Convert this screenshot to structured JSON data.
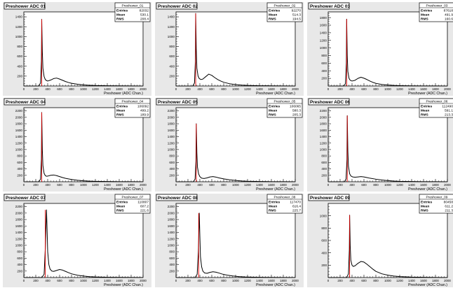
{
  "colors": {
    "histogram_line": "#000000",
    "cut_line": "#e00000",
    "canvas_bg": "#e8e8e8",
    "frame_bg": "#ffffff",
    "axis": "#000000"
  },
  "common": {
    "xlabel": "Preshower (ADC Chan.)",
    "x_ticks": [
      "0",
      "200",
      "400",
      "600",
      "800",
      "1000",
      "1200",
      "1400",
      "1600",
      "1800",
      "2000"
    ],
    "stats_labels": {
      "entries": "Entries",
      "mean": "Mean",
      "rms": "RMS"
    }
  },
  "chart_data": [
    {
      "type": "line",
      "title": "Preshower ADC 01",
      "stats": {
        "name": "Preshower_01",
        "entries": "82032",
        "mean": "530.1",
        "rms": "208.4"
      },
      "xlim": [
        0,
        2000
      ],
      "ylim": [
        0,
        1500
      ],
      "y_ticks": [
        200,
        400,
        600,
        800,
        1000,
        1200,
        1400
      ],
      "cut_x": 300,
      "peak": {
        "x": 300,
        "y": 1350
      },
      "x": [
        0,
        250,
        280,
        295,
        300,
        310,
        320,
        340,
        360,
        380,
        400,
        450,
        500,
        550,
        600,
        650,
        700,
        750,
        800,
        900,
        1000,
        1100,
        1200,
        1400,
        1600,
        1800,
        2000
      ],
      "y": [
        0,
        0,
        60,
        500,
        1350,
        700,
        360,
        190,
        130,
        110,
        100,
        120,
        150,
        160,
        140,
        115,
        90,
        70,
        55,
        35,
        22,
        15,
        10,
        6,
        4,
        2,
        0
      ]
    },
    {
      "type": "line",
      "title": "Preshower ADC 02",
      "stats": {
        "name": "Preshower_02",
        "entries": "92270",
        "mean": "514.3",
        "rms": "194.5"
      },
      "xlim": [
        0,
        2000
      ],
      "ylim": [
        0,
        1500
      ],
      "y_ticks": [
        200,
        400,
        600,
        800,
        1000,
        1200,
        1400
      ],
      "cut_x": 330,
      "peak": {
        "x": 330,
        "y": 1470
      },
      "x": [
        0,
        280,
        310,
        325,
        330,
        340,
        350,
        370,
        390,
        420,
        450,
        500,
        550,
        600,
        650,
        700,
        750,
        800,
        900,
        1000,
        1100,
        1200,
        1400,
        1600,
        1800,
        2000
      ],
      "y": [
        0,
        0,
        60,
        500,
        1470,
        750,
        360,
        200,
        150,
        130,
        140,
        190,
        240,
        215,
        170,
        130,
        100,
        75,
        45,
        28,
        18,
        12,
        6,
        4,
        2,
        0
      ]
    },
    {
      "type": "line",
      "title": "Preshower ADC 03",
      "stats": {
        "name": "Preshower_03",
        "entries": "87618",
        "mean": "491.9",
        "rms": "160.6"
      },
      "xlim": [
        0,
        2000
      ],
      "ylim": [
        0,
        1950
      ],
      "y_ticks": [
        200,
        400,
        600,
        800,
        1000,
        1200,
        1400,
        1600,
        1800
      ],
      "cut_x": 310,
      "peak": {
        "x": 310,
        "y": 1760
      },
      "x": [
        0,
        260,
        290,
        305,
        310,
        320,
        330,
        350,
        370,
        400,
        450,
        500,
        550,
        600,
        650,
        700,
        750,
        800,
        900,
        1000,
        1100,
        1200,
        1400,
        1600,
        1800,
        2000
      ],
      "y": [
        0,
        0,
        60,
        600,
        1760,
        800,
        380,
        200,
        150,
        130,
        150,
        200,
        230,
        205,
        170,
        130,
        95,
        70,
        40,
        25,
        15,
        10,
        5,
        3,
        2,
        0
      ]
    },
    {
      "type": "line",
      "title": "Preshower ADC 04",
      "stats": {
        "name": "Preshower_04",
        "entries": "106092",
        "mean": "499.2",
        "rms": "189.9"
      },
      "xlim": [
        0,
        2000
      ],
      "ylim": [
        0,
        2300
      ],
      "y_ticks": [
        200,
        400,
        600,
        800,
        1000,
        1200,
        1400,
        1600,
        1800,
        2000,
        2200
      ],
      "cut_x": 300,
      "peak": {
        "x": 300,
        "y": 2150
      },
      "x": [
        0,
        250,
        280,
        295,
        300,
        310,
        320,
        340,
        360,
        380,
        400,
        450,
        500,
        550,
        600,
        650,
        700,
        800,
        900,
        1000,
        1100,
        1200,
        1400,
        1600,
        1800,
        2000
      ],
      "y": [
        0,
        0,
        80,
        700,
        2150,
        1000,
        500,
        260,
        190,
        170,
        175,
        200,
        210,
        190,
        160,
        130,
        105,
        70,
        45,
        30,
        20,
        13,
        7,
        4,
        2,
        0
      ]
    },
    {
      "type": "line",
      "title": "Preshower ADC 05",
      "stats": {
        "name": "Preshower_05",
        "entries": "106065",
        "mean": "580.3",
        "rms": "205.3"
      },
      "xlim": [
        0,
        2000
      ],
      "ylim": [
        0,
        2300
      ],
      "y_ticks": [
        200,
        400,
        600,
        800,
        1000,
        1200,
        1400,
        1600,
        1800,
        2000,
        2200
      ],
      "cut_x": 340,
      "peak": {
        "x": 340,
        "y": 1800
      },
      "x": [
        0,
        290,
        320,
        335,
        340,
        350,
        360,
        380,
        400,
        430,
        470,
        520,
        570,
        620,
        670,
        720,
        800,
        900,
        1000,
        1100,
        1200,
        1400,
        1600,
        1800,
        2000
      ],
      "y": [
        0,
        0,
        80,
        650,
        1800,
        900,
        450,
        240,
        160,
        110,
        100,
        120,
        150,
        160,
        145,
        120,
        90,
        60,
        40,
        25,
        16,
        8,
        4,
        2,
        0
      ]
    },
    {
      "type": "line",
      "title": "Preshower ADC 06",
      "stats": {
        "name": "Preshower_06",
        "entries": "112490",
        "mean": "591.1",
        "rms": "213.3"
      },
      "xlim": [
        0,
        2000
      ],
      "ylim": [
        0,
        2300
      ],
      "y_ticks": [
        200,
        400,
        600,
        800,
        1000,
        1200,
        1400,
        1600,
        1800,
        2000,
        2200
      ],
      "cut_x": 320,
      "peak": {
        "x": 320,
        "y": 2050
      },
      "x": [
        0,
        270,
        300,
        315,
        320,
        330,
        340,
        360,
        380,
        410,
        450,
        500,
        550,
        600,
        650,
        700,
        800,
        900,
        1000,
        1100,
        1200,
        1400,
        1600,
        1800,
        2000
      ],
      "y": [
        0,
        0,
        80,
        700,
        2050,
        950,
        480,
        250,
        180,
        150,
        140,
        150,
        160,
        150,
        130,
        110,
        80,
        55,
        35,
        22,
        14,
        7,
        4,
        2,
        0
      ]
    },
    {
      "type": "line",
      "title": "Preshower ADC 07",
      "stats": {
        "name": "Preshower_07",
        "entries": "110807",
        "mean": "607.2",
        "rms": "221.6"
      },
      "xlim": [
        0,
        2000
      ],
      "ylim": [
        0,
        2300
      ],
      "y_ticks": [
        200,
        400,
        600,
        800,
        1000,
        1200,
        1400,
        1600,
        1800,
        2000,
        2200
      ],
      "cut_x": 360,
      "peak": {
        "x": 380,
        "y": 2100
      },
      "x": [
        0,
        300,
        340,
        360,
        380,
        390,
        400,
        420,
        440,
        470,
        500,
        550,
        600,
        650,
        700,
        750,
        800,
        900,
        1000,
        1100,
        1200,
        1400,
        1600,
        1800,
        2000
      ],
      "y": [
        0,
        0,
        100,
        900,
        2100,
        1500,
        800,
        400,
        260,
        200,
        190,
        220,
        250,
        230,
        190,
        150,
        115,
        70,
        45,
        28,
        18,
        9,
        5,
        2,
        0
      ]
    },
    {
      "type": "line",
      "title": "Preshower ADC 08",
      "stats": {
        "name": "Preshower_08",
        "entries": "117470",
        "mean": "616.4",
        "rms": "225.7"
      },
      "xlim": [
        0,
        2000
      ],
      "ylim": [
        0,
        2300
      ],
      "y_ticks": [
        200,
        400,
        600,
        800,
        1000,
        1200,
        1400,
        1600,
        1800,
        2000,
        2200
      ],
      "cut_x": 380,
      "peak": {
        "x": 390,
        "y": 2000
      },
      "x": [
        0,
        320,
        355,
        375,
        390,
        400,
        410,
        430,
        450,
        480,
        520,
        570,
        620,
        670,
        720,
        770,
        850,
        950,
        1050,
        1150,
        1300,
        1500,
        1700,
        2000
      ],
      "y": [
        0,
        0,
        100,
        800,
        2000,
        1300,
        650,
        330,
        200,
        140,
        130,
        160,
        180,
        165,
        140,
        110,
        75,
        48,
        30,
        19,
        10,
        5,
        2,
        0
      ]
    },
    {
      "type": "line",
      "title": "Preshower ADC 09",
      "stats": {
        "name": "Preshower_09",
        "entries": "80458",
        "mean": "611.2",
        "rms": "211.3"
      },
      "xlim": [
        0,
        2000
      ],
      "ylim": [
        0,
        1200
      ],
      "y_ticks": [
        200,
        400,
        600,
        800,
        1000
      ],
      "cut_x": 360,
      "peak": {
        "x": 360,
        "y": 1010
      },
      "x": [
        0,
        310,
        340,
        355,
        360,
        370,
        380,
        400,
        420,
        450,
        500,
        550,
        600,
        650,
        700,
        750,
        800,
        900,
        1000,
        1100,
        1200,
        1400,
        1600,
        1800,
        2000
      ],
      "y": [
        0,
        0,
        60,
        450,
        1010,
        500,
        280,
        200,
        180,
        190,
        230,
        260,
        250,
        215,
        175,
        135,
        100,
        60,
        38,
        24,
        15,
        7,
        4,
        2,
        0
      ]
    }
  ]
}
